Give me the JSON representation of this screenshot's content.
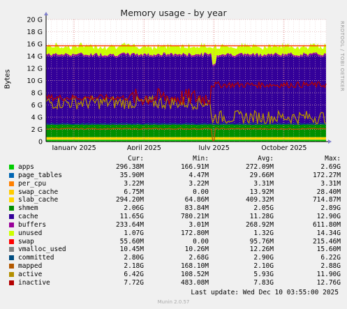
{
  "title": "Memory usage - by year",
  "ylabel": "Bytes",
  "side_text": "RRDTOOL / TOBI OETIKER",
  "legend_headers": {
    "cur": "Cur:",
    "min": "Min:",
    "avg": "Avg:",
    "max": "Max:"
  },
  "legend": [
    {
      "name": "apps",
      "color": "#00cc00",
      "cur": "296.38M",
      "min": "166.91M",
      "avg": "272.09M",
      "max": "2.69G"
    },
    {
      "name": "page_tables",
      "color": "#0066b3",
      "cur": "35.90M",
      "min": "4.47M",
      "avg": "29.66M",
      "max": "172.27M"
    },
    {
      "name": "per_cpu",
      "color": "#ff8000",
      "cur": "3.22M",
      "min": "3.22M",
      "avg": "3.31M",
      "max": "3.31M"
    },
    {
      "name": "swap_cache",
      "color": "#ffcc00",
      "cur": "6.75M",
      "min": "0.00",
      "avg": "13.92M",
      "max": "28.40M"
    },
    {
      "name": "slab_cache",
      "color": "#ffd700",
      "cur": "294.20M",
      "min": "64.86M",
      "avg": "409.32M",
      "max": "714.87M"
    },
    {
      "name": "shmem",
      "color": "#008f00",
      "cur": "2.06G",
      "min": "83.84M",
      "avg": "2.05G",
      "max": "2.89G"
    },
    {
      "name": "cache",
      "color": "#330099",
      "cur": "11.65G",
      "min": "780.21M",
      "avg": "11.28G",
      "max": "12.90G"
    },
    {
      "name": "buffers",
      "color": "#990099",
      "cur": "233.64M",
      "min": "3.01M",
      "avg": "268.92M",
      "max": "611.80M"
    },
    {
      "name": "unused",
      "color": "#ccff00",
      "cur": "1.07G",
      "min": "172.80M",
      "avg": "1.32G",
      "max": "14.34G"
    },
    {
      "name": "swap",
      "color": "#ff0000",
      "cur": "55.60M",
      "min": "0.00",
      "avg": "95.76M",
      "max": "215.46M"
    },
    {
      "name": "vmalloc_used",
      "color": "#808080",
      "cur": "10.45M",
      "min": "10.26M",
      "avg": "12.26M",
      "max": "15.60M"
    },
    {
      "name": "committed",
      "color": "#004d80",
      "cur": "2.80G",
      "min": "2.68G",
      "avg": "2.90G",
      "max": "6.22G"
    },
    {
      "name": "mapped",
      "color": "#b35900",
      "cur": "2.18G",
      "min": "168.10M",
      "avg": "2.10G",
      "max": "2.88G"
    },
    {
      "name": "active",
      "color": "#b38f00",
      "cur": "6.42G",
      "min": "108.52M",
      "avg": "5.93G",
      "max": "11.90G"
    },
    {
      "name": "inactive",
      "color": "#b30000",
      "cur": "7.72G",
      "min": "483.08M",
      "avg": "7.83G",
      "max": "12.76G"
    }
  ],
  "last_update": "Last update: Wed Dec 10 03:55:00 2025",
  "munin_version": "Munin 2.0.57",
  "chart_data": {
    "type": "area",
    "title": "Memory usage - by year",
    "ylabel": "Bytes",
    "y_ticks": [
      "0",
      "2 G",
      "4 G",
      "6 G",
      "8 G",
      "10 G",
      "12 G",
      "14 G",
      "16 G",
      "18 G",
      "20 G"
    ],
    "y_tick_values": [
      0,
      2,
      4,
      6,
      8,
      10,
      12,
      14,
      16,
      18,
      20
    ],
    "ylim": [
      0,
      20
    ],
    "y_unit": "GB",
    "x_ticks": [
      "January 2025",
      "April 2025",
      "July 2025",
      "October 2025"
    ],
    "x_tick_positions": [
      0.1,
      0.35,
      0.6,
      0.85
    ],
    "x_range": [
      "December 2024",
      "December 2025"
    ],
    "grid": true,
    "stacked_series": [
      {
        "name": "apps",
        "color": "#00cc00",
        "value": 0.29
      },
      {
        "name": "page_tables",
        "color": "#0066b3",
        "value": 0.03
      },
      {
        "name": "swap_cache",
        "color": "#ffcc00",
        "value": 0.01
      },
      {
        "name": "slab_cache",
        "color": "#ffd700",
        "value": 0.4
      },
      {
        "name": "shmem",
        "color": "#008f00",
        "value": 2.05
      },
      {
        "name": "cache",
        "color": "#330099",
        "value": 11.28
      },
      {
        "name": "buffers",
        "color": "#990099",
        "value": 0.27
      },
      {
        "name": "unused",
        "color": "#ccff00",
        "value": 1.32
      }
    ],
    "line_series": [
      {
        "name": "committed",
        "color": "#004d80",
        "value": 2.9
      },
      {
        "name": "mapped",
        "color": "#b35900",
        "value": 2.1
      },
      {
        "name": "active",
        "color": "#b38f00",
        "value": 5.93
      },
      {
        "name": "inactive",
        "color": "#b30000",
        "value": 7.83
      }
    ]
  }
}
